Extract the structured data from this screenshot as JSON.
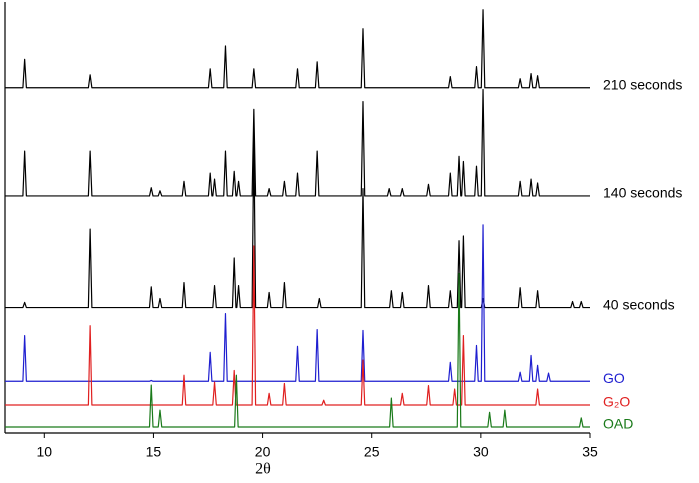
{
  "chart_data": {
    "type": "line",
    "x_label": "2θ",
    "xlim": [
      8.2,
      35
    ],
    "ylim": [
      0,
      100
    ],
    "xticks": [
      10,
      15,
      20,
      25,
      30,
      35
    ],
    "series": [
      {
        "name": "210 seconds",
        "color": "#000000",
        "x": [
          8.2,
          9.02,
          9.1,
          9.18,
          12.02,
          12.1,
          12.18,
          17.52,
          17.6,
          17.68,
          18.22,
          18.3,
          18.38,
          19.52,
          19.6,
          19.68,
          21.52,
          21.6,
          21.68,
          22.42,
          22.5,
          22.58,
          24.52,
          24.6,
          24.68,
          28.52,
          28.6,
          28.68,
          29.72,
          29.8,
          29.88,
          30.02,
          30.1,
          30.18,
          31.72,
          31.8,
          31.88,
          32.22,
          32.3,
          32.38,
          32.52,
          32.6,
          32.68,
          35
        ],
        "values": [
          80.1,
          80.1,
          86.7,
          80.1,
          80.1,
          83.1,
          80.1,
          80.1,
          84.5,
          80.1,
          80.1,
          89.8,
          80.1,
          80.1,
          84.5,
          80.1,
          80.1,
          84.5,
          80.1,
          80.1,
          86.1,
          80.1,
          80.1,
          93.8,
          80.1,
          80.1,
          82.7,
          80.1,
          80.1,
          85.0,
          80.1,
          80.1,
          98.2,
          80.1,
          80.1,
          82.2,
          80.1,
          80.1,
          83.4,
          80.1,
          80.1,
          82.9,
          80.1,
          80.1
        ]
      },
      {
        "name": "140 seconds",
        "color": "#000000",
        "x": [
          8.2,
          9.02,
          9.1,
          9.18,
          12.02,
          12.1,
          12.18,
          14.82,
          14.9,
          14.98,
          15.22,
          15.3,
          15.38,
          16.32,
          16.4,
          16.48,
          17.52,
          17.6,
          17.68,
          17.72,
          17.8,
          17.88,
          18.22,
          18.3,
          18.38,
          18.62,
          18.7,
          18.78,
          18.82,
          18.9,
          18.98,
          19.52,
          19.6,
          19.68,
          20.22,
          20.3,
          20.38,
          20.92,
          21.0,
          21.08,
          21.52,
          21.6,
          21.68,
          22.42,
          22.5,
          22.58,
          24.52,
          24.6,
          24.68,
          25.72,
          25.8,
          25.88,
          26.32,
          26.4,
          26.48,
          27.52,
          27.6,
          27.68,
          28.52,
          28.6,
          28.68,
          28.92,
          29.0,
          29.08,
          29.12,
          29.2,
          29.28,
          29.72,
          29.8,
          29.88,
          30.02,
          30.1,
          30.18,
          31.72,
          31.8,
          31.88,
          32.22,
          32.3,
          32.38,
          32.52,
          32.6,
          32.68,
          35
        ],
        "values": [
          55.0,
          55.0,
          65.4,
          55.0,
          55.0,
          65.4,
          55.0,
          55.0,
          56.9,
          55.0,
          55.0,
          56.2,
          55.0,
          55.0,
          58.4,
          55.0,
          55.0,
          60.3,
          55.0,
          55.0,
          58.9,
          55.0,
          55.0,
          65.4,
          55.0,
          55.0,
          60.7,
          55.0,
          55.0,
          58.4,
          55.0,
          55.0,
          75.1,
          55.0,
          55.0,
          56.7,
          55.0,
          55.0,
          58.4,
          55.0,
          55.0,
          60.3,
          55.0,
          55.0,
          65.4,
          55.0,
          55.0,
          76.9,
          55.0,
          55.0,
          56.7,
          55.0,
          55.0,
          56.7,
          55.0,
          55.0,
          57.7,
          55.0,
          55.0,
          60.3,
          55.0,
          55.0,
          64.2,
          55.0,
          55.0,
          63.0,
          55.0,
          55.0,
          61.9,
          55.0,
          55.0,
          79.7,
          55.0,
          55.0,
          58.4,
          55.0,
          55.0,
          58.9,
          55.0,
          55.0,
          58.0,
          55.0,
          55.0
        ]
      },
      {
        "name": "40 seconds",
        "color": "#000000",
        "x": [
          8.2,
          9.02,
          9.1,
          9.18,
          12.02,
          12.1,
          12.18,
          14.82,
          14.9,
          14.98,
          15.22,
          15.3,
          15.38,
          16.32,
          16.4,
          16.48,
          17.72,
          17.8,
          17.88,
          18.62,
          18.7,
          18.78,
          18.82,
          18.9,
          18.98,
          19.52,
          19.6,
          19.68,
          20.22,
          20.3,
          20.38,
          20.92,
          21.0,
          21.08,
          22.52,
          22.6,
          22.68,
          24.52,
          24.6,
          24.68,
          25.82,
          25.9,
          25.98,
          26.32,
          26.4,
          26.48,
          27.52,
          27.6,
          27.68,
          28.52,
          28.6,
          28.68,
          28.92,
          29.0,
          29.08,
          29.12,
          29.2,
          29.28,
          30.02,
          30.1,
          30.18,
          31.72,
          31.8,
          31.88,
          32.52,
          32.6,
          32.68,
          34.12,
          34.2,
          34.28,
          34.52,
          34.6,
          34.68,
          35
        ],
        "values": [
          29.1,
          29.1,
          30.3,
          29.1,
          29.1,
          47.3,
          29.1,
          29.1,
          33.9,
          29.1,
          29.1,
          31.2,
          29.1,
          29.1,
          34.9,
          29.1,
          29.1,
          34.2,
          29.1,
          29.1,
          40.6,
          29.1,
          29.1,
          34.2,
          29.1,
          29.1,
          69.1,
          29.1,
          29.1,
          32.6,
          29.1,
          29.1,
          34.9,
          29.1,
          29.1,
          31.2,
          29.1,
          29.1,
          56.7,
          29.1,
          29.1,
          33.0,
          29.1,
          29.1,
          32.6,
          29.1,
          29.1,
          34.2,
          29.1,
          29.1,
          33.0,
          29.1,
          29.1,
          44.6,
          29.1,
          29.1,
          45.7,
          29.1,
          29.1,
          31.2,
          29.1,
          29.1,
          33.7,
          29.1,
          29.1,
          33.0,
          29.1,
          29.1,
          30.5,
          29.1,
          29.1,
          30.5,
          29.1,
          29.1
        ]
      },
      {
        "name": "GO",
        "color": "#1f1fd0",
        "x": [
          8.2,
          9.02,
          9.1,
          9.18,
          14.82,
          14.9,
          14.98,
          17.52,
          17.6,
          17.68,
          18.22,
          18.3,
          18.38,
          21.52,
          21.6,
          21.68,
          22.42,
          22.5,
          22.58,
          24.52,
          24.6,
          24.68,
          28.52,
          28.6,
          28.68,
          29.72,
          29.8,
          29.88,
          30.02,
          30.1,
          30.18,
          31.72,
          31.8,
          31.88,
          32.22,
          32.3,
          32.38,
          32.52,
          32.6,
          32.68,
          33.02,
          33.1,
          33.18,
          35
        ],
        "values": [
          12.0,
          12.0,
          22.6,
          12.0,
          12.0,
          12.2,
          12.0,
          12.0,
          18.7,
          12.0,
          12.0,
          27.7,
          12.0,
          12.0,
          20.1,
          12.0,
          12.0,
          24.0,
          12.0,
          12.0,
          23.8,
          12.0,
          12.0,
          16.4,
          12.0,
          12.0,
          20.3,
          12.0,
          12.0,
          48.3,
          12.0,
          12.0,
          14.1,
          12.0,
          12.0,
          18.0,
          12.0,
          12.0,
          15.7,
          12.0,
          12.0,
          13.9,
          12.0,
          12.0
        ]
      },
      {
        "name": "G₂O",
        "color": "#e02020",
        "x": [
          8.2,
          12.02,
          12.1,
          12.18,
          16.32,
          16.4,
          16.48,
          17.72,
          17.8,
          17.88,
          18.62,
          18.7,
          18.78,
          19.52,
          19.6,
          19.68,
          20.22,
          20.3,
          20.38,
          20.92,
          21.0,
          21.08,
          22.72,
          22.8,
          22.88,
          24.52,
          24.6,
          24.68,
          26.32,
          26.4,
          26.48,
          27.52,
          27.6,
          27.68,
          28.72,
          28.8,
          28.88,
          29.12,
          29.2,
          29.28,
          32.52,
          32.6,
          32.68,
          35
        ],
        "values": [
          6.5,
          6.5,
          24.9,
          6.5,
          6.5,
          13.4,
          6.5,
          6.5,
          11.8,
          6.5,
          6.5,
          14.5,
          6.5,
          6.5,
          43.4,
          6.5,
          6.5,
          9.2,
          6.5,
          6.5,
          11.5,
          6.5,
          6.5,
          7.6,
          6.5,
          6.5,
          16.9,
          6.5,
          6.5,
          9.2,
          6.5,
          6.5,
          11.0,
          6.5,
          6.5,
          10.2,
          6.5,
          6.5,
          22.6,
          6.5,
          6.5,
          10.2,
          6.5,
          6.5
        ]
      },
      {
        "name": "OAD",
        "color": "#1a7a1a",
        "x": [
          8.2,
          14.82,
          14.9,
          14.98,
          15.22,
          15.3,
          15.38,
          18.72,
          18.8,
          18.88,
          25.82,
          25.9,
          25.98,
          28.92,
          29.0,
          29.08,
          30.32,
          30.4,
          30.48,
          31.02,
          31.1,
          31.18,
          34.52,
          34.6,
          34.68,
          35
        ],
        "values": [
          1.4,
          1.4,
          11.1,
          1.4,
          1.4,
          5.3,
          1.4,
          1.4,
          13.4,
          1.4,
          1.4,
          8.1,
          1.4,
          1.4,
          37.0,
          1.4,
          1.4,
          4.8,
          1.4,
          1.4,
          5.3,
          1.4,
          1.4,
          3.5,
          1.4,
          1.4
        ]
      }
    ]
  }
}
